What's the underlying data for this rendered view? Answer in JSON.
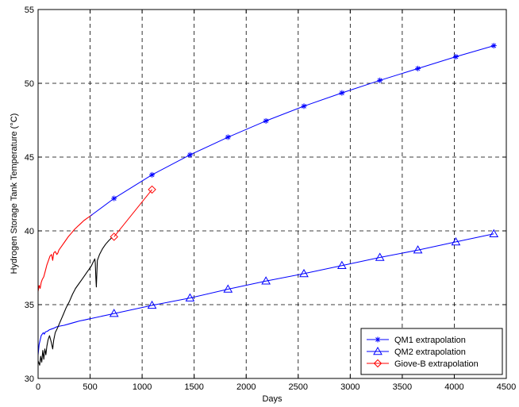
{
  "chart_data": {
    "type": "line",
    "title": "",
    "xlabel": "Days",
    "ylabel": "Hydrogen Storage Tank Temperature (°C)",
    "xlim": [
      0,
      4500
    ],
    "ylim": [
      30,
      55
    ],
    "xticks": [
      0,
      500,
      1000,
      1500,
      2000,
      2500,
      3000,
      3500,
      4000,
      4500
    ],
    "yticks": [
      30,
      35,
      40,
      45,
      50,
      55
    ],
    "grid": true,
    "legend_position": "bottom-right",
    "colors": {
      "qm1": "#0000ff",
      "qm2": "#0000ff",
      "giove": "#ff0000",
      "measured_black": "#000000"
    },
    "series": [
      {
        "name": "QM1 extrapolation",
        "marker": "asterisk",
        "color": "#0000ff",
        "line": [
          [
            500,
            41.0
          ],
          [
            730,
            42.2
          ],
          [
            1095,
            43.8
          ],
          [
            1460,
            45.15
          ],
          [
            1825,
            46.35
          ],
          [
            2190,
            47.45
          ],
          [
            2555,
            48.45
          ],
          [
            2920,
            49.35
          ],
          [
            3285,
            50.2
          ],
          [
            3650,
            51.0
          ],
          [
            4015,
            51.8
          ],
          [
            4380,
            52.55
          ]
        ],
        "markers": [
          [
            730,
            42.2
          ],
          [
            1095,
            43.8
          ],
          [
            1460,
            45.15
          ],
          [
            1825,
            46.35
          ],
          [
            2190,
            47.45
          ],
          [
            2555,
            48.45
          ],
          [
            2920,
            49.35
          ],
          [
            3285,
            50.2
          ],
          [
            3650,
            51.0
          ],
          [
            4015,
            51.8
          ],
          [
            4380,
            52.55
          ]
        ]
      },
      {
        "name": "QM2 extrapolation",
        "marker": "triangle",
        "color": "#0000ff",
        "line": [
          [
            500,
            34.05
          ],
          [
            730,
            34.4
          ],
          [
            1095,
            34.95
          ],
          [
            1460,
            35.45
          ],
          [
            1825,
            36.05
          ],
          [
            2190,
            36.6
          ],
          [
            2555,
            37.1
          ],
          [
            2920,
            37.65
          ],
          [
            3285,
            38.2
          ],
          [
            3650,
            38.7
          ],
          [
            4015,
            39.25
          ],
          [
            4380,
            39.8
          ]
        ],
        "markers": [
          [
            730,
            34.4
          ],
          [
            1095,
            34.95
          ],
          [
            1460,
            35.45
          ],
          [
            1825,
            36.05
          ],
          [
            2190,
            36.6
          ],
          [
            2555,
            37.1
          ],
          [
            2920,
            37.65
          ],
          [
            3285,
            38.2
          ],
          [
            3650,
            38.7
          ],
          [
            4015,
            39.25
          ],
          [
            4380,
            39.8
          ]
        ]
      },
      {
        "name": "Giove-B extrapolation",
        "marker": "diamond",
        "color": "#ff0000",
        "line": [
          [
            730,
            39.6
          ],
          [
            1095,
            42.8
          ]
        ],
        "markers": [
          [
            730,
            39.6
          ],
          [
            1095,
            42.8
          ]
        ]
      }
    ],
    "measured": [
      {
        "color": "#ff0000",
        "points": [
          [
            0,
            35.9
          ],
          [
            10,
            36.3
          ],
          [
            20,
            36.1
          ],
          [
            30,
            36.5
          ],
          [
            40,
            36.7
          ],
          [
            55,
            36.9
          ],
          [
            70,
            37.3
          ],
          [
            85,
            37.7
          ],
          [
            100,
            38.0
          ],
          [
            115,
            38.3
          ],
          [
            130,
            38.4
          ],
          [
            140,
            38.0
          ],
          [
            150,
            38.5
          ],
          [
            165,
            38.6
          ],
          [
            180,
            38.4
          ],
          [
            190,
            38.5
          ],
          [
            200,
            38.7
          ],
          [
            230,
            39.0
          ],
          [
            260,
            39.3
          ],
          [
            290,
            39.6
          ],
          [
            320,
            39.85
          ],
          [
            350,
            40.1
          ],
          [
            380,
            40.3
          ],
          [
            410,
            40.5
          ],
          [
            440,
            40.7
          ],
          [
            470,
            40.85
          ],
          [
            500,
            41.0
          ],
          [
            520,
            41.1
          ]
        ]
      },
      {
        "color": "#0000ff",
        "points": [
          [
            0,
            31.6
          ],
          [
            10,
            32.3
          ],
          [
            20,
            32.6
          ],
          [
            30,
            32.9
          ],
          [
            40,
            33.0
          ],
          [
            50,
            33.1
          ],
          [
            60,
            33.0
          ],
          [
            70,
            33.15
          ],
          [
            90,
            33.2
          ],
          [
            110,
            33.3
          ],
          [
            130,
            33.35
          ],
          [
            150,
            33.4
          ],
          [
            180,
            33.5
          ],
          [
            210,
            33.55
          ],
          [
            250,
            33.6
          ],
          [
            300,
            33.7
          ],
          [
            350,
            33.8
          ],
          [
            400,
            33.9
          ],
          [
            450,
            33.97
          ],
          [
            500,
            34.05
          ]
        ]
      },
      {
        "color": "#000000",
        "points": [
          [
            0,
            31.2
          ],
          [
            15,
            30.9
          ],
          [
            25,
            31.5
          ],
          [
            35,
            31.1
          ],
          [
            45,
            31.9
          ],
          [
            55,
            31.3
          ],
          [
            65,
            32.0
          ],
          [
            75,
            31.6
          ],
          [
            85,
            32.2
          ],
          [
            95,
            32.6
          ],
          [
            110,
            32.9
          ],
          [
            125,
            32.5
          ],
          [
            140,
            32.0
          ],
          [
            150,
            32.6
          ],
          [
            165,
            33.1
          ],
          [
            185,
            33.4
          ],
          [
            210,
            33.8
          ],
          [
            240,
            34.3
          ],
          [
            270,
            34.8
          ],
          [
            300,
            35.2
          ],
          [
            330,
            35.7
          ],
          [
            360,
            36.1
          ],
          [
            390,
            36.4
          ],
          [
            420,
            36.7
          ],
          [
            450,
            37.0
          ],
          [
            480,
            37.3
          ],
          [
            510,
            37.6
          ],
          [
            530,
            37.9
          ],
          [
            545,
            38.1
          ],
          [
            550,
            37.8
          ],
          [
            555,
            36.8
          ],
          [
            560,
            36.2
          ],
          [
            565,
            37.2
          ],
          [
            570,
            38.0
          ],
          [
            590,
            38.4
          ],
          [
            620,
            38.8
          ],
          [
            650,
            39.1
          ],
          [
            680,
            39.35
          ],
          [
            710,
            39.55
          ]
        ]
      }
    ]
  }
}
